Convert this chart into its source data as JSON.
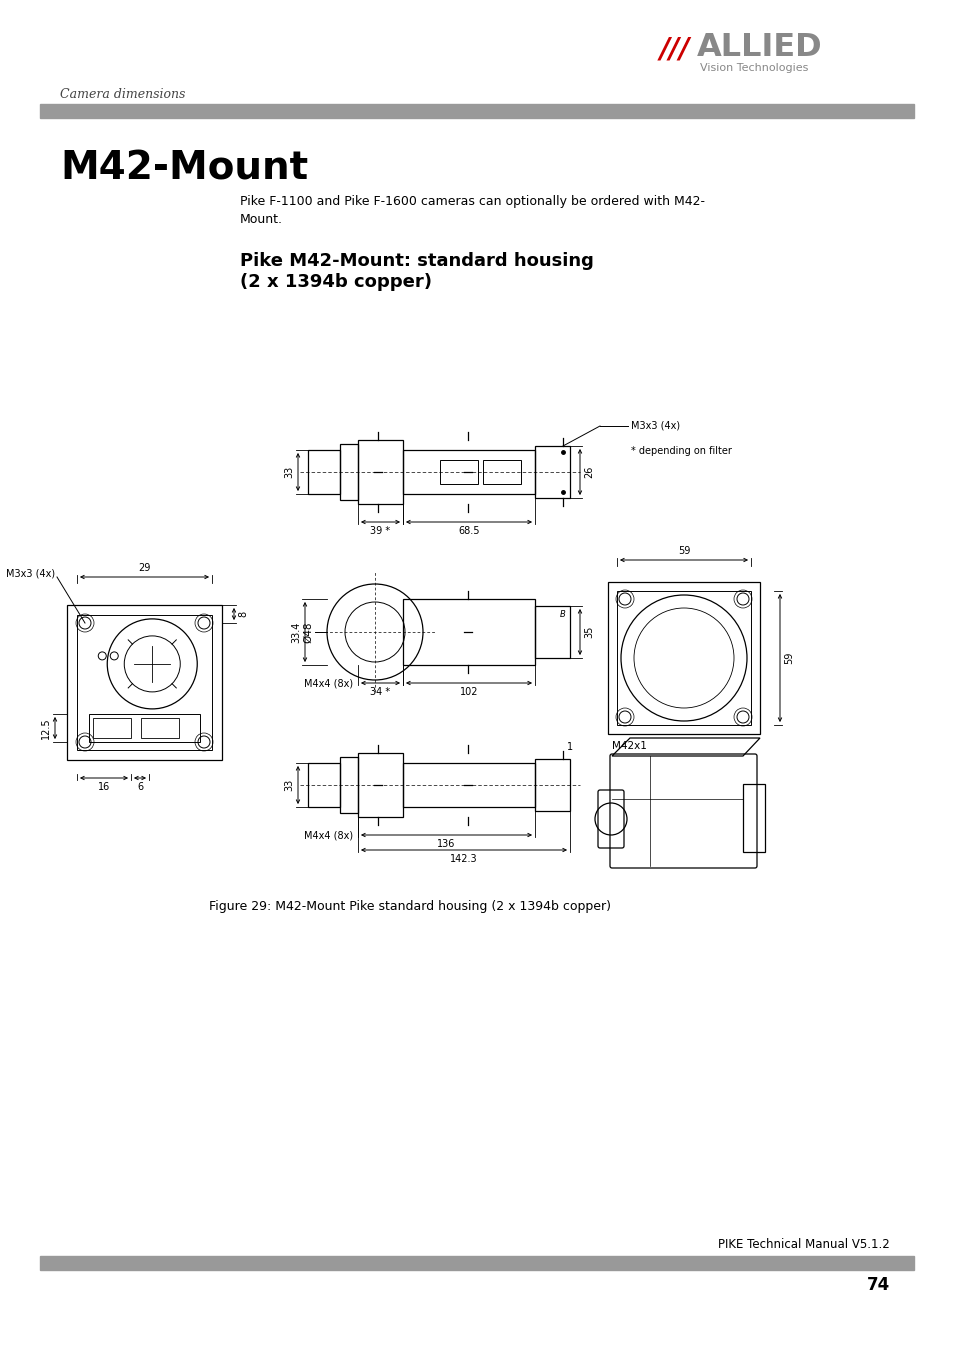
{
  "page_header_left": "Camera dimensions",
  "allied_slashes": "///",
  "allied_name": "ALLIED",
  "allied_sub": "Vision Technologies",
  "main_title": "M42-Mount",
  "body_text_line1": "Pike F-1100 and Pike F-1600 cameras can optionally be ordered with M42-",
  "body_text_line2": "Mount.",
  "section_title_line1": "Pike M42-Mount: standard housing",
  "section_title_line2": "(2 x 1394b copper)",
  "figure_caption": "Figure 29: M42-Mount Pike standard housing (2 x 1394b copper)",
  "footer_right": "PIKE Technical Manual V5.1.2",
  "page_number": "74",
  "bar_color": "#999999",
  "bg_color": "#ffffff",
  "text_color": "#000000",
  "dim_note": "* depending on filter",
  "label_m3x3": "M3x3 (4x)",
  "label_m4x4": "M4x4 (8x)",
  "label_m42x1": "M42x1",
  "label_d48": "Ø48",
  "dim_33_top": "33",
  "dim_26": "26",
  "dim_39": "39 *",
  "dim_685": "68.5",
  "dim_334": "33.4",
  "dim_35": "35",
  "dim_34": "34 *",
  "dim_102": "102",
  "dim_33_bot": "33",
  "dim_136": "136",
  "dim_1423": "142.3",
  "dim_29": "29",
  "dim_125": "12.5",
  "dim_8": "8",
  "dim_16": "16",
  "dim_6": "6",
  "dim_59": "59",
  "dim_95": "59"
}
